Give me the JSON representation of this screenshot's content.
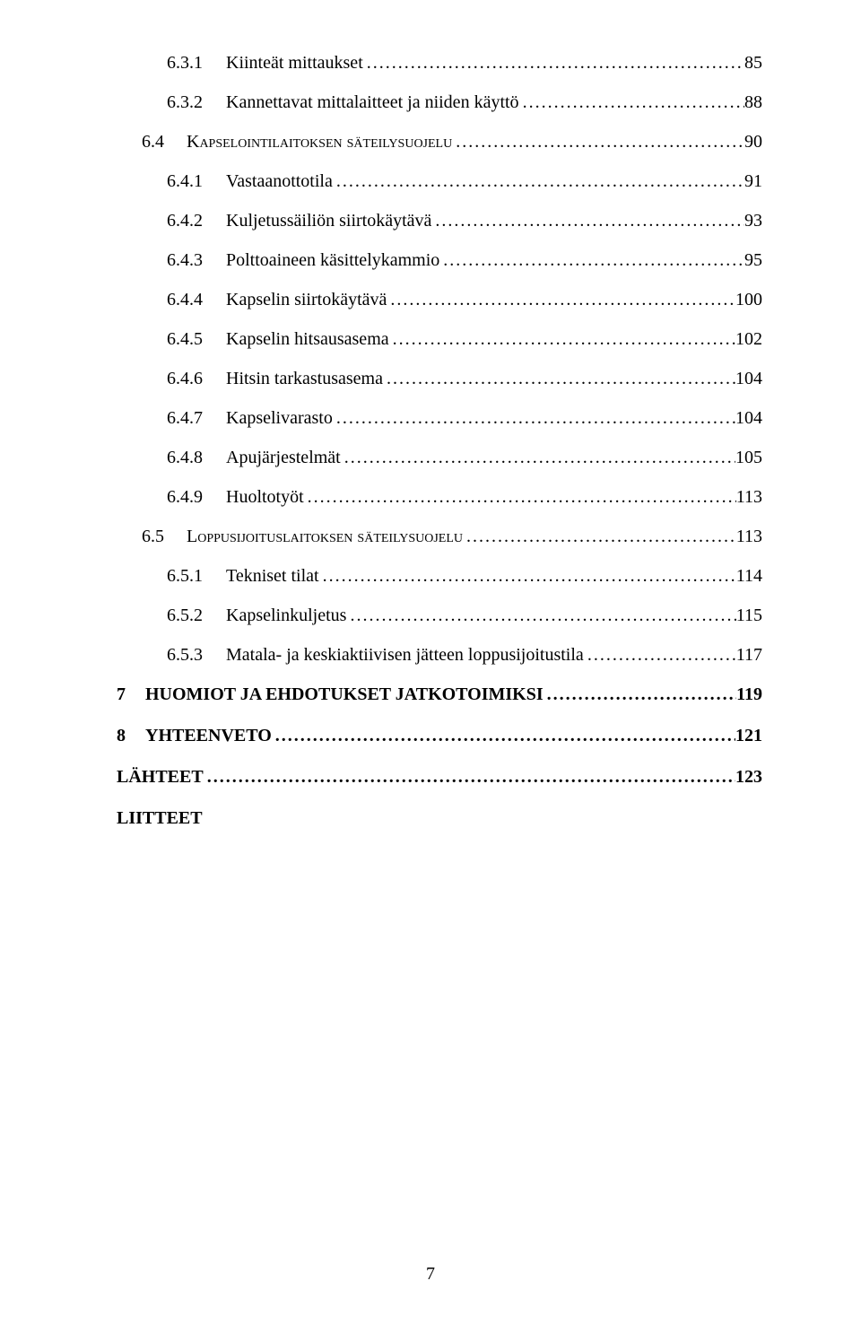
{
  "page_number": "7",
  "entries": [
    {
      "level": "lvl3",
      "num": "6.3.1",
      "label": "Kiinteät mittaukset",
      "page": "85"
    },
    {
      "level": "lvl3",
      "num": "6.3.2",
      "label": "Kannettavat mittalaitteet ja niiden käyttö",
      "page": "88"
    },
    {
      "level": "lvl2",
      "num": "6.4",
      "label": "Kapselointilaitoksen säteilysuojelu",
      "page": "90"
    },
    {
      "level": "lvl3",
      "num": "6.4.1",
      "label": "Vastaanottotila",
      "page": "91"
    },
    {
      "level": "lvl3",
      "num": "6.4.2",
      "label": "Kuljetussäiliön siirtokäytävä",
      "page": "93"
    },
    {
      "level": "lvl3",
      "num": "6.4.3",
      "label": "Polttoaineen käsittelykammio",
      "page": "95"
    },
    {
      "level": "lvl3",
      "num": "6.4.4",
      "label": "Kapselin siirtokäytävä",
      "page": "100"
    },
    {
      "level": "lvl3",
      "num": "6.4.5",
      "label": "Kapselin hitsausasema",
      "page": "102"
    },
    {
      "level": "lvl3",
      "num": "6.4.6",
      "label": "Hitsin tarkastusasema",
      "page": "104"
    },
    {
      "level": "lvl3",
      "num": "6.4.7",
      "label": "Kapselivarasto",
      "page": "104"
    },
    {
      "level": "lvl3",
      "num": "6.4.8",
      "label": "Apujärjestelmät",
      "page": "105"
    },
    {
      "level": "lvl3",
      "num": "6.4.9",
      "label": "Huoltotyöt",
      "page": "113"
    },
    {
      "level": "lvl2",
      "num": "6.5",
      "label": "Loppusijoituslaitoksen säteilysuojelu",
      "page": "113"
    },
    {
      "level": "lvl3",
      "num": "6.5.1",
      "label": "Tekniset tilat",
      "page": "114"
    },
    {
      "level": "lvl3",
      "num": "6.5.2",
      "label": "Kapselinkuljetus",
      "page": "115"
    },
    {
      "level": "lvl3",
      "num": "6.5.3",
      "label": "Matala- ja keskiaktiivisen jätteen loppusijoitustila",
      "page": "117"
    },
    {
      "level": "lvl1",
      "num": "7",
      "label": "HUOMIOT JA EHDOTUKSET JATKOTOIMIKSI",
      "page": "119"
    },
    {
      "level": "lvl1",
      "num": "8",
      "label": "YHTEENVETO",
      "page": "121"
    },
    {
      "level": "lvl1 nonum",
      "num": "",
      "label": "LÄHTEET",
      "page": "123"
    },
    {
      "level": "lvl1 nonum liitteet",
      "num": "",
      "label": "LIITTEET",
      "page": ""
    }
  ]
}
